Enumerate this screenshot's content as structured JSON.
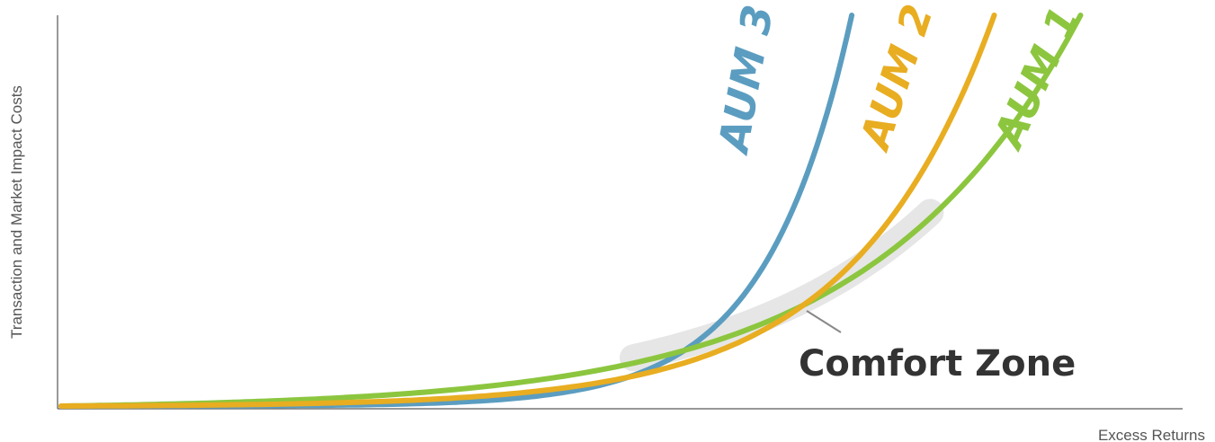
{
  "chart_data": {
    "type": "line",
    "xlabel": "Excess Returns",
    "ylabel": "Transaction and Market Impact Costs",
    "xlim": [
      0,
      100
    ],
    "ylim": [
      0,
      100
    ],
    "grid": false,
    "legend": "inline labels at curve ends",
    "series": [
      {
        "name": "AUM 3",
        "color": "#5b9dc0",
        "growth": 9.2,
        "x_end": 70.5
      },
      {
        "name": "AUM 2",
        "color": "#e8ad21",
        "growth": 6.6,
        "x_end": 83.2
      },
      {
        "name": "AUM 1",
        "color": "#8cc63f",
        "growth": 4.9,
        "x_end": 90.9
      }
    ],
    "annotation": {
      "text": "Comfort Zone",
      "highlight_x_range": [
        51.0,
        77.5
      ],
      "color": "#e6e6e6"
    }
  }
}
